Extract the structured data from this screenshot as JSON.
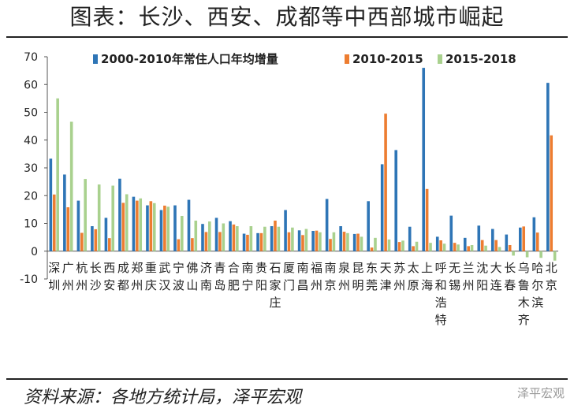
{
  "title": "图表：长沙、西安、成都等中西部城市崛起",
  "source": "资料来源：各地方统计局，泽平宏观",
  "watermark": "泽平宏观",
  "chart_data": {
    "type": "bar",
    "categories": [
      "深圳",
      "广州",
      "杭州",
      "长沙",
      "西安",
      "成都",
      "郑州",
      "重庆",
      "武汉",
      "宁波",
      "佛山",
      "济南",
      "青岛",
      "合肥",
      "南宁",
      "贵阳",
      "石家庄",
      "厦门",
      "南昌",
      "福州",
      "南京",
      "泉州",
      "昆明",
      "东莞",
      "天津",
      "苏州",
      "太原",
      "上海",
      "呼和浩特",
      "无锡",
      "兰州",
      "沈阳",
      "大连",
      "长春",
      "乌鲁木齐",
      "哈尔滨",
      "北京"
    ],
    "series": [
      {
        "name": "2000-2010年常住人口年均增量",
        "color": "#2e75b6",
        "values": [
          33.3,
          27.6,
          18.2,
          9.0,
          12.0,
          26.1,
          19.6,
          16.5,
          14.8,
          16.5,
          18.5,
          9.8,
          12.0,
          10.8,
          6.3,
          6.5,
          9.0,
          14.8,
          7.5,
          7.3,
          18.8,
          9.0,
          6.2,
          18.0,
          31.3,
          36.4,
          8.8,
          66.0,
          5.2,
          12.8,
          4.8,
          9.2,
          8.0,
          6.0,
          8.5,
          12.2,
          60.6
        ]
      },
      {
        "name": "2010-2015",
        "color": "#ed7d31",
        "values": [
          20.4,
          15.8,
          6.6,
          7.9,
          4.7,
          17.4,
          18.2,
          18.0,
          16.4,
          4.3,
          4.7,
          6.9,
          6.9,
          9.6,
          5.9,
          6.5,
          11.0,
          6.8,
          5.8,
          7.4,
          4.4,
          7.0,
          6.3,
          1.3,
          49.5,
          3.3,
          1.8,
          22.4,
          3.9,
          3.0,
          1.8,
          4.0,
          4.0,
          2.2,
          8.9,
          6.7,
          41.7
        ]
      },
      {
        "name": "2015-2018",
        "color": "#a9d18e",
        "values": [
          55.0,
          46.6,
          26.0,
          24.0,
          23.6,
          20.5,
          19.0,
          17.3,
          16.0,
          12.7,
          11.0,
          10.7,
          10.0,
          9.0,
          9.0,
          8.8,
          8.8,
          8.5,
          8.0,
          6.8,
          6.8,
          6.5,
          5.2,
          4.8,
          4.2,
          3.8,
          3.4,
          3.0,
          2.7,
          2.4,
          2.2,
          2.0,
          1.5,
          -1.6,
          -2.2,
          -2.4,
          -3.4
        ]
      }
    ],
    "ylim": [
      -10,
      70
    ],
    "yticks": [
      -10,
      0,
      10,
      20,
      30,
      40,
      50,
      60,
      70
    ],
    "legend": "top"
  }
}
